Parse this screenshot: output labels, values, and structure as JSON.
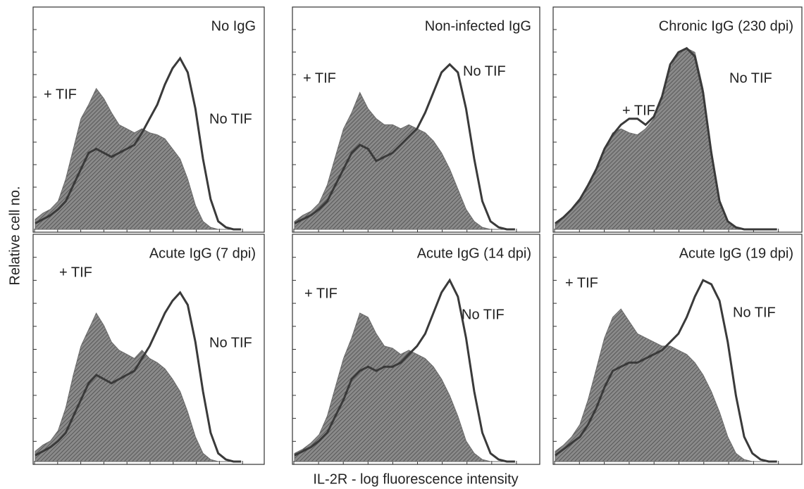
{
  "ylabel": "Relative cell no.",
  "xlabel": "IL-2R - log fluorescence intensity",
  "chart_data": [
    {
      "type": "area",
      "title": "No IgG",
      "series": [
        {
          "name": "+ TIF",
          "color": "#6a6a6a",
          "values": [
            5,
            8,
            10,
            14,
            25,
            40,
            55,
            62,
            70,
            65,
            58,
            52,
            50,
            48,
            50,
            48,
            47,
            45,
            40,
            35,
            25,
            12,
            4,
            1,
            0,
            0,
            0,
            0
          ]
        },
        {
          "name": "No TIF",
          "color": "#3a3a3a",
          "values": [
            3,
            5,
            7,
            10,
            14,
            22,
            30,
            38,
            40,
            38,
            36,
            38,
            40,
            42,
            48,
            55,
            62,
            72,
            80,
            85,
            78,
            60,
            35,
            15,
            4,
            1,
            0,
            0
          ]
        }
      ]
    },
    {
      "type": "area",
      "title": "Non-infected IgG",
      "series": [
        {
          "name": "+ TIF",
          "color": "#6a6a6a",
          "values": [
            4,
            7,
            9,
            13,
            22,
            36,
            50,
            58,
            68,
            60,
            55,
            52,
            52,
            50,
            52,
            50,
            48,
            44,
            38,
            30,
            20,
            10,
            4,
            1,
            0,
            0,
            0,
            0
          ]
        },
        {
          "name": "No TIF",
          "color": "#3a3a3a",
          "values": [
            3,
            5,
            7,
            10,
            14,
            22,
            30,
            38,
            42,
            40,
            34,
            36,
            38,
            42,
            46,
            50,
            58,
            68,
            78,
            82,
            78,
            60,
            35,
            14,
            4,
            1,
            0,
            0
          ]
        }
      ]
    },
    {
      "type": "area",
      "title": "Chronic IgG (230 dpi)",
      "series": [
        {
          "name": "+ TIF",
          "color": "#6a6a6a",
          "values": [
            3,
            6,
            10,
            15,
            22,
            30,
            40,
            48,
            50,
            48,
            47,
            50,
            55,
            65,
            80,
            88,
            90,
            88,
            70,
            40,
            15,
            4,
            1,
            0,
            0,
            0,
            0,
            0
          ]
        },
        {
          "name": "No TIF",
          "color": "#3a3a3a",
          "values": [
            3,
            6,
            10,
            15,
            22,
            30,
            40,
            47,
            52,
            55,
            55,
            52,
            56,
            66,
            82,
            88,
            90,
            86,
            68,
            38,
            14,
            4,
            1,
            0,
            0,
            0,
            0,
            0
          ]
        }
      ]
    },
    {
      "type": "area",
      "title": "Acute IgG (7 dpi)",
      "series": [
        {
          "name": "+ TIF",
          "color": "#6a6a6a",
          "values": [
            5,
            8,
            10,
            15,
            26,
            42,
            56,
            64,
            72,
            66,
            58,
            54,
            52,
            50,
            54,
            50,
            48,
            45,
            40,
            34,
            24,
            12,
            4,
            1,
            0,
            0,
            0,
            0
          ]
        },
        {
          "name": "No TIF",
          "color": "#3a3a3a",
          "values": [
            3,
            5,
            7,
            10,
            14,
            22,
            30,
            38,
            42,
            40,
            38,
            40,
            42,
            44,
            50,
            56,
            64,
            72,
            78,
            82,
            76,
            58,
            34,
            14,
            4,
            1,
            0,
            0
          ]
        }
      ]
    },
    {
      "type": "area",
      "title": "Acute IgG (14 dpi)",
      "series": [
        {
          "name": "+ TIF",
          "color": "#6a6a6a",
          "values": [
            4,
            6,
            9,
            13,
            22,
            36,
            50,
            60,
            72,
            70,
            62,
            56,
            55,
            52,
            54,
            52,
            50,
            46,
            40,
            32,
            22,
            10,
            4,
            1,
            0,
            0,
            0,
            0
          ]
        },
        {
          "name": "No TIF",
          "color": "#3a3a3a",
          "values": [
            3,
            5,
            7,
            10,
            14,
            22,
            30,
            40,
            44,
            46,
            44,
            46,
            46,
            48,
            52,
            56,
            62,
            72,
            82,
            88,
            80,
            60,
            34,
            14,
            4,
            1,
            0,
            0
          ]
        }
      ]
    },
    {
      "type": "area",
      "title": "Acute IgG (19 dpi)",
      "series": [
        {
          "name": "+ TIF",
          "color": "#6a6a6a",
          "values": [
            5,
            8,
            12,
            18,
            30,
            45,
            60,
            70,
            74,
            68,
            62,
            60,
            58,
            56,
            56,
            54,
            52,
            48,
            42,
            34,
            24,
            12,
            4,
            1,
            0,
            0,
            0,
            0
          ]
        },
        {
          "name": "No TIF",
          "color": "#3a3a3a",
          "values": [
            3,
            6,
            9,
            12,
            18,
            26,
            36,
            44,
            46,
            48,
            48,
            50,
            52,
            54,
            58,
            62,
            70,
            80,
            88,
            86,
            78,
            58,
            32,
            12,
            4,
            1,
            0,
            0
          ]
        }
      ]
    }
  ]
}
